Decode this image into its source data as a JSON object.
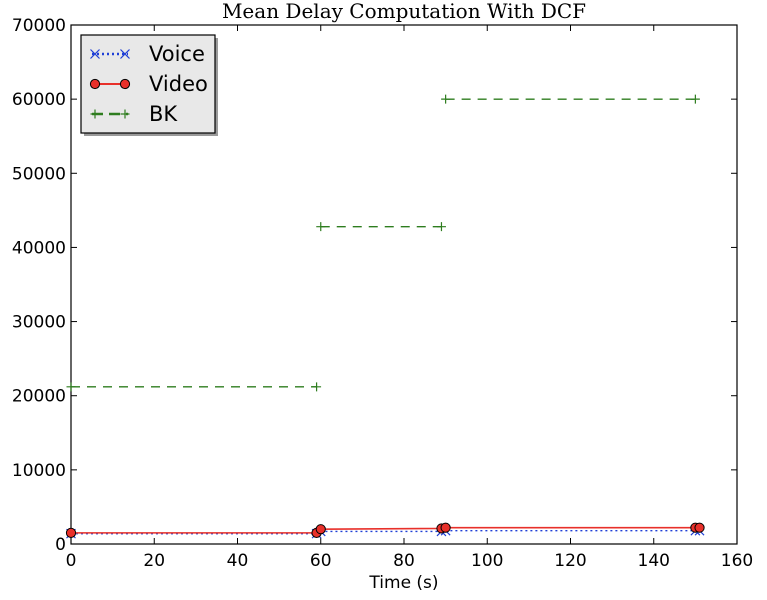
{
  "chart_data": {
    "type": "line",
    "title": "Mean Delay Computation With DCF",
    "xlabel": "Time (s)",
    "ylabel": "",
    "xlim": [
      0,
      160
    ],
    "ylim": [
      0,
      70000
    ],
    "xticks": [
      "0",
      "20",
      "40",
      "60",
      "80",
      "100",
      "120",
      "140",
      "160"
    ],
    "yticks": [
      "0",
      "10000",
      "20000",
      "30000",
      "40000",
      "50000",
      "60000",
      "70000"
    ],
    "legend_position": "top-left",
    "grid": false,
    "series": [
      {
        "name": "Voice",
        "color": "#1f3fd6",
        "linestyle": "dotted",
        "marker": "x",
        "x": [
          0,
          59,
          60,
          89,
          90,
          150,
          151
        ],
        "y": [
          1400,
          1400,
          1700,
          1700,
          1800,
          1800,
          1800
        ]
      },
      {
        "name": "Video",
        "color": "#e8302a",
        "linestyle": "solid",
        "marker": "o",
        "x": [
          0,
          59,
          60,
          89,
          90,
          150,
          151
        ],
        "y": [
          1500,
          1500,
          2000,
          2100,
          2200,
          2200,
          2200
        ]
      },
      {
        "name": "BK",
        "color": "#2e7d1f",
        "linestyle": "dashed",
        "marker": "+",
        "segments": [
          {
            "x": [
              0,
              59
            ],
            "y": [
              21200,
              21200
            ]
          },
          {
            "x": [
              60,
              89
            ],
            "y": [
              42800,
              42800
            ]
          },
          {
            "x": [
              90,
              150
            ],
            "y": [
              60000,
              60000
            ]
          }
        ]
      }
    ]
  }
}
